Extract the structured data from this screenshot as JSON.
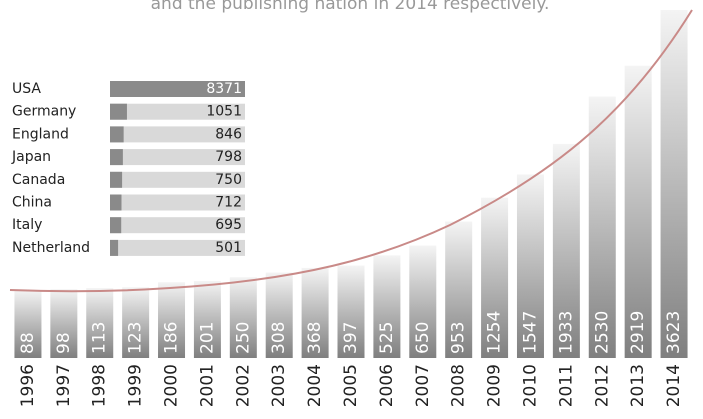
{
  "chart_data": [
    {
      "type": "bar",
      "title": "and the publishing nation in 2014 respectively.",
      "categories": [
        "1996",
        "1997",
        "1998",
        "1999",
        "2000",
        "2001",
        "2002",
        "2003",
        "2004",
        "2005",
        "2006",
        "2007",
        "2008",
        "2009",
        "2010",
        "2011",
        "2012",
        "2013",
        "2014"
      ],
      "values": [
        88,
        98,
        113,
        123,
        186,
        201,
        250,
        308,
        368,
        397,
        525,
        650,
        953,
        1254,
        1547,
        1933,
        2530,
        2919,
        3623
      ],
      "color": "#8a8a8a",
      "ylim": [
        -770,
        3623
      ]
    },
    {
      "type": "hbar",
      "categories": [
        "USA",
        "Germany",
        "England",
        "Japan",
        "Canada",
        "China",
        "Italy",
        "Netherland"
      ],
      "values": [
        8371,
        1051,
        846,
        798,
        750,
        712,
        695,
        501
      ],
      "color": "#8a8a8a",
      "xlim": [
        0,
        8371
      ]
    }
  ]
}
